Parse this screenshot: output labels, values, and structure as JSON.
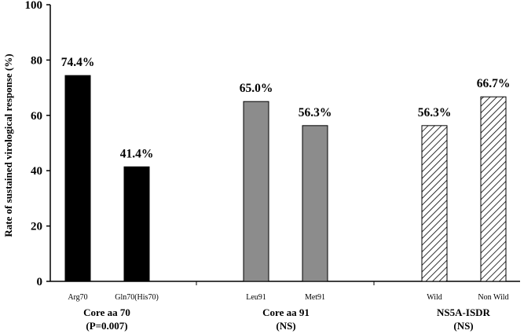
{
  "chart_data": {
    "type": "bar",
    "ylabel": "Rate of sustained virological response (%)",
    "ylim": [
      0,
      100
    ],
    "yticks": [
      "0",
      "20",
      "40",
      "60",
      "80",
      "100"
    ],
    "groups": [
      {
        "label": "Core aa 70",
        "sublabel": "(P=0.007)",
        "fill": "solid-black",
        "bars": [
          {
            "category": "Arg70",
            "value": 74.4,
            "label": "74.4%"
          },
          {
            "category": "Gln70(His70)",
            "value": 41.4,
            "label": "41.4%"
          }
        ]
      },
      {
        "label": "Core aa 91",
        "sublabel": "(NS)",
        "fill": "gray",
        "bars": [
          {
            "category": "Leu91",
            "value": 65.0,
            "label": "65.0%"
          },
          {
            "category": "Met91",
            "value": 56.3,
            "label": "56.3%"
          }
        ]
      },
      {
        "label": "NS5A-ISDR",
        "sublabel": "(NS)",
        "fill": "diagonal-hatch",
        "bars": [
          {
            "category": "Wild",
            "value": 56.3,
            "label": "56.3%"
          },
          {
            "category": "Non Wild",
            "value": 66.7,
            "label": "66.7%"
          }
        ]
      }
    ],
    "colors": {
      "black": "#000000",
      "gray": "#8c8c8c",
      "hatch_bg": "#ffffff"
    },
    "grid": false,
    "legend": "none"
  }
}
